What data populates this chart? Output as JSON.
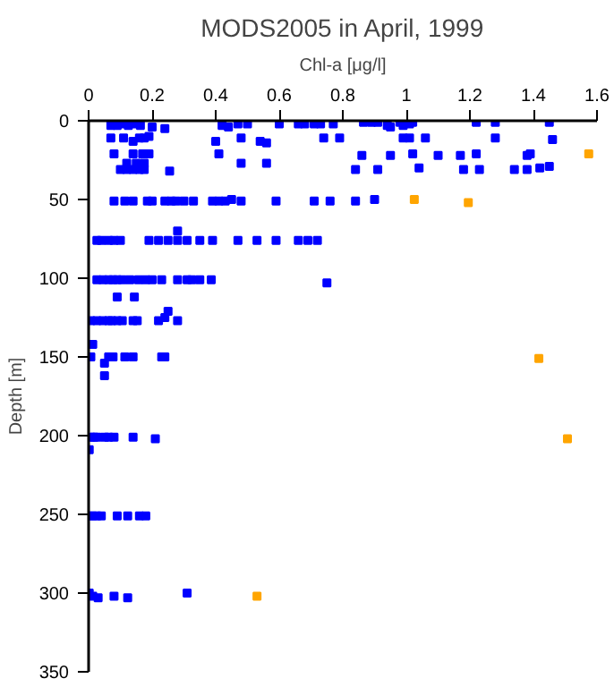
{
  "chart_data": {
    "type": "scatter",
    "title": "MODS2005 in April, 1999",
    "xlabel": "Chl-a [μg/l]",
    "ylabel": "Depth [m]",
    "xlim": [
      0,
      1.6
    ],
    "xticks": [
      0,
      0.2,
      0.4,
      0.6,
      0.8,
      1,
      1.2,
      1.4,
      1.6
    ],
    "ylim": [
      350,
      0
    ],
    "yticks": [
      0,
      50,
      100,
      150,
      200,
      250,
      300,
      350
    ],
    "grid": false,
    "marker": "square",
    "series": [
      {
        "color": "#0000ff",
        "x": [
          0.07,
          0.09,
          0.11,
          0.125,
          0.148,
          0.163,
          0.2,
          0.24,
          0.42,
          0.44,
          0.47,
          0.5,
          0.6,
          0.66,
          0.68,
          0.71,
          0.73,
          0.77,
          0.865,
          0.89,
          0.91,
          0.94,
          0.95,
          0.98,
          0.99,
          1.01,
          1.02,
          1.22,
          1.28,
          1.45,
          0.07,
          0.11,
          0.14,
          0.16,
          0.175,
          0.19,
          0.4,
          0.48,
          0.54,
          0.56,
          0.74,
          0.79,
          0.99,
          1.01,
          1.06,
          1.28,
          1.46,
          0.08,
          0.14,
          0.17,
          0.19,
          0.41,
          0.48,
          0.56,
          0.86,
          0.95,
          1.02,
          1.1,
          1.17,
          1.22,
          1.38,
          1.39,
          0.12,
          0.15,
          0.175,
          0.1,
          0.12,
          0.14,
          0.16,
          0.175,
          0.255,
          0.84,
          0.91,
          1.04,
          1.18,
          1.23,
          1.34,
          1.38,
          1.42,
          1.45,
          0.08,
          0.114,
          0.14,
          0.185,
          0.2,
          0.24,
          0.26,
          0.275,
          0.3,
          0.33,
          0.39,
          0.41,
          0.43,
          0.45,
          0.48,
          0.59,
          0.71,
          0.76,
          0.84,
          0.9,
          0.026,
          0.04,
          0.063,
          0.08,
          0.1,
          0.19,
          0.22,
          0.25,
          0.28,
          0.31,
          0.35,
          0.39,
          0.47,
          0.53,
          0.59,
          0.66,
          0.69,
          0.72,
          0.28,
          0.026,
          0.045,
          0.063,
          0.077,
          0.09,
          0.106,
          0.13,
          0.157,
          0.18,
          0.2,
          0.23,
          0.28,
          0.31,
          0.325,
          0.35,
          0.386,
          0.75,
          0.09,
          0.144,
          0.25,
          0.007,
          0.026,
          0.045,
          0.063,
          0.073,
          0.09,
          0.106,
          0.14,
          0.153,
          0.22,
          0.24,
          0.28,
          0.013,
          0.007,
          0.063,
          0.077,
          0.114,
          0.14,
          0.23,
          0.24,
          0.05,
          0.05,
          0.007,
          0.017,
          0.026,
          0.05,
          0.063,
          0.08,
          0.14,
          0.21,
          0.002,
          0.002,
          0.013,
          0.026,
          0.04,
          0.09,
          0.123,
          0.16,
          0.18,
          0.002,
          0.013,
          0.03,
          0.08,
          0.123,
          0.31
        ],
        "values": [
          3,
          3,
          2,
          3,
          2,
          3,
          4,
          5,
          3,
          4,
          2,
          2,
          2,
          2,
          2,
          2,
          2,
          2,
          1,
          1,
          1,
          3,
          4,
          1,
          3,
          2,
          1,
          1,
          1,
          1,
          11,
          11,
          13,
          11,
          11,
          10,
          13,
          11,
          13,
          14,
          11,
          11,
          11,
          11,
          11,
          11,
          12,
          21,
          21,
          21,
          21,
          21,
          27,
          27,
          22,
          22,
          21,
          22,
          22,
          21,
          22,
          21,
          27,
          27,
          27,
          31,
          31,
          31,
          31,
          31,
          32,
          31,
          31,
          30,
          31,
          31,
          31,
          31,
          30,
          29,
          51,
          51,
          51,
          51,
          51,
          51,
          51,
          51,
          51,
          51,
          51,
          51,
          51,
          50,
          51,
          51,
          51,
          51,
          51,
          50,
          76,
          76,
          76,
          76,
          76,
          76,
          76,
          76,
          76,
          76,
          76,
          76,
          76,
          76,
          76,
          76,
          76,
          76,
          70,
          101,
          101,
          101,
          101,
          101,
          101,
          101,
          101,
          101,
          101,
          101,
          101,
          101,
          101,
          101,
          101,
          103,
          112,
          112,
          121,
          127,
          127,
          127,
          127,
          127,
          127,
          127,
          127,
          127,
          127,
          125,
          127,
          142,
          150,
          150,
          150,
          150,
          150,
          150,
          150,
          154,
          162,
          201,
          201,
          201,
          201,
          201,
          201,
          201,
          202,
          209,
          251,
          251,
          251,
          251,
          251,
          251,
          251,
          251,
          300,
          302,
          303,
          302,
          303,
          300
        ]
      },
      {
        "color": "#ffa500",
        "x": [
          1.574,
          1.025,
          1.195,
          1.417,
          1.507,
          0.53
        ],
        "values": [
          21,
          50,
          52,
          151,
          202,
          302
        ]
      }
    ]
  }
}
